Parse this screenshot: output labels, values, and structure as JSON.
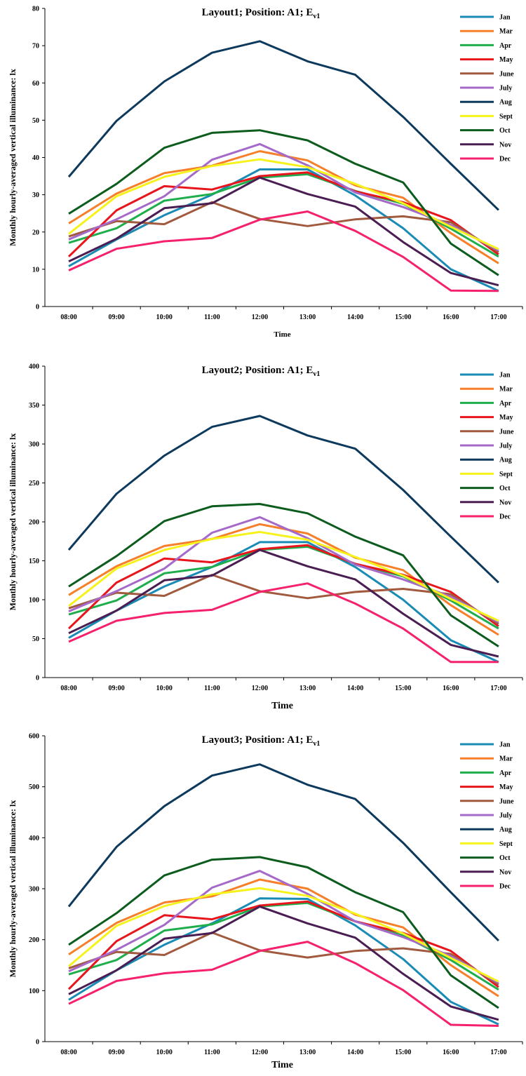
{
  "colors": {
    "Jan": "#1a8bb5",
    "Mar": "#f77f2a",
    "Apr": "#1fae4c",
    "May": "#e8161c",
    "June": "#a15a3e",
    "July": "#a569c9",
    "Aug": "#0d3a5c",
    "Sept": "#f6f21c",
    "Oct": "#0c5c1e",
    "Nov": "#4a1e52",
    "Dec": "#f5216d"
  },
  "chart_data": [
    {
      "type": "line",
      "title": "Layout1; Position: A1; E",
      "title_subscript": "v1",
      "xlabel": "Time",
      "ylabel": "Monthly hourly-averaged vertical illuminance: lx",
      "categories": [
        "08:00",
        "09:00",
        "10:00",
        "11:00",
        "12:00",
        "13:00",
        "14:00",
        "15:00",
        "16:00",
        "17:00"
      ],
      "ylim": [
        0,
        80
      ],
      "yticks": [
        0,
        10,
        20,
        30,
        40,
        50,
        60,
        70,
        80
      ],
      "legend_position": "right",
      "grid": false,
      "series": [
        {
          "name": "Jan",
          "values": [
            10.8,
            18.0,
            24.5,
            30.0,
            36.8,
            36.8,
            29.8,
            21.0,
            10.0,
            4.2
          ]
        },
        {
          "name": "Mar",
          "values": [
            22.3,
            30.3,
            35.8,
            37.8,
            41.7,
            39.2,
            32.5,
            29.2,
            19.7,
            11.6
          ]
        },
        {
          "name": "Apr",
          "values": [
            17.1,
            21.0,
            28.4,
            30.2,
            34.6,
            35.5,
            31.0,
            27.6,
            20.9,
            13.4
          ]
        },
        {
          "name": "May",
          "values": [
            13.4,
            25.8,
            32.3,
            31.4,
            35.0,
            36.0,
            30.9,
            28.0,
            23.2,
            14.0
          ]
        },
        {
          "name": "June",
          "values": [
            18.8,
            22.9,
            22.1,
            28.0,
            23.5,
            21.6,
            23.4,
            24.2,
            22.6,
            14.6
          ]
        },
        {
          "name": "July",
          "values": [
            18.0,
            23.4,
            29.6,
            39.4,
            43.6,
            37.9,
            30.6,
            26.7,
            21.9,
            15.0
          ]
        },
        {
          "name": "Aug",
          "values": [
            34.8,
            49.8,
            60.4,
            68.1,
            71.2,
            65.8,
            62.2,
            50.9,
            38.3,
            25.9
          ]
        },
        {
          "name": "Sept",
          "values": [
            19.5,
            29.6,
            34.8,
            37.7,
            39.5,
            37.4,
            32.9,
            27.7,
            21.4,
            15.4
          ]
        },
        {
          "name": "Oct",
          "values": [
            24.9,
            32.9,
            42.6,
            46.6,
            47.3,
            44.6,
            38.3,
            33.3,
            16.9,
            8.4
          ]
        },
        {
          "name": "Nov",
          "values": [
            12.1,
            18.2,
            26.4,
            27.7,
            34.6,
            30.2,
            26.8,
            17.3,
            9.0,
            5.7
          ]
        },
        {
          "name": "Dec",
          "values": [
            9.7,
            15.5,
            17.5,
            18.4,
            23.3,
            25.5,
            20.3,
            13.3,
            4.3,
            4.2
          ]
        }
      ]
    },
    {
      "type": "line",
      "title": "Layout2; Position: A1; E",
      "title_subscript": "v1",
      "xlabel": "Time",
      "ylabel": "Monthly hourly-averaged vertical illuminance: lx",
      "categories": [
        "08:00",
        "09:00",
        "10:00",
        "11:00",
        "12:00",
        "13:00",
        "14:00",
        "15:00",
        "16:00",
        "17:00"
      ],
      "ylim": [
        0,
        400
      ],
      "yticks": [
        0,
        50,
        100,
        150,
        200,
        250,
        300,
        350,
        400
      ],
      "legend_position": "right",
      "grid": false,
      "series": [
        {
          "name": "Jan",
          "values": [
            51,
            86,
            117,
            142,
            174,
            174,
            142,
            100,
            48,
            20
          ]
        },
        {
          "name": "Mar",
          "values": [
            106,
            143,
            169,
            178,
            197,
            185,
            154,
            138,
            93,
            55
          ]
        },
        {
          "name": "Apr",
          "values": [
            81,
            99,
            134,
            142,
            164,
            168,
            146,
            130,
            99,
            63
          ]
        },
        {
          "name": "May",
          "values": [
            63,
            122,
            153,
            148,
            165,
            170,
            146,
            132,
            110,
            66
          ]
        },
        {
          "name": "June",
          "values": [
            89,
            109,
            105,
            132,
            111,
            102,
            110,
            114,
            107,
            69
          ]
        },
        {
          "name": "July",
          "values": [
            85,
            111,
            140,
            186,
            206,
            179,
            145,
            126,
            104,
            71
          ]
        },
        {
          "name": "Aug",
          "values": [
            164,
            236,
            285,
            322,
            336,
            311,
            294,
            241,
            181,
            122
          ]
        },
        {
          "name": "Sept",
          "values": [
            92,
            140,
            164,
            178,
            187,
            177,
            155,
            131,
            101,
            73
          ]
        },
        {
          "name": "Oct",
          "values": [
            117,
            156,
            201,
            220,
            223,
            211,
            181,
            157,
            80,
            40
          ]
        },
        {
          "name": "Nov",
          "values": [
            57,
            86,
            125,
            131,
            164,
            143,
            126,
            82,
            42,
            27
          ]
        },
        {
          "name": "Dec",
          "values": [
            46,
            73,
            83,
            87,
            110,
            121,
            95,
            63,
            20,
            20
          ]
        }
      ]
    },
    {
      "type": "line",
      "title": "Layout3; Position: A1; E",
      "title_subscript": "v1",
      "xlabel": "Time",
      "ylabel": "Monthly hourly-averaged vertical illuminance: lx",
      "categories": [
        "08:00",
        "09:00",
        "10:00",
        "11:00",
        "12:00",
        "13:00",
        "14:00",
        "15:00",
        "16:00",
        "17:00"
      ],
      "ylim": [
        0,
        600
      ],
      "yticks": [
        0,
        100,
        200,
        300,
        400,
        500,
        600
      ],
      "legend_position": "right",
      "grid": false,
      "series": [
        {
          "name": "Jan",
          "values": [
            82,
            140,
            190,
            232,
            281,
            280,
            228,
            162,
            78,
            34
          ]
        },
        {
          "name": "Mar",
          "values": [
            171,
            233,
            273,
            285,
            318,
            300,
            249,
            224,
            150,
            89
          ]
        },
        {
          "name": "Apr",
          "values": [
            132,
            160,
            218,
            230,
            265,
            272,
            236,
            208,
            160,
            102
          ]
        },
        {
          "name": "May",
          "values": [
            103,
            197,
            248,
            240,
            267,
            275,
            236,
            213,
            178,
            107
          ]
        },
        {
          "name": "June",
          "values": [
            144,
            176,
            170,
            214,
            179,
            165,
            178,
            183,
            172,
            112
          ]
        },
        {
          "name": "July",
          "values": [
            138,
            180,
            229,
            302,
            335,
            290,
            236,
            205,
            168,
            115
          ]
        },
        {
          "name": "Aug",
          "values": [
            265,
            382,
            462,
            522,
            544,
            504,
            476,
            390,
            293,
            198
          ]
        },
        {
          "name": "Sept",
          "values": [
            148,
            227,
            266,
            289,
            301,
            286,
            251,
            212,
            164,
            118
          ]
        },
        {
          "name": "Oct",
          "values": [
            190,
            252,
            326,
            357,
            362,
            342,
            293,
            254,
            130,
            66
          ]
        },
        {
          "name": "Nov",
          "values": [
            93,
            140,
            202,
            213,
            265,
            232,
            204,
            133,
            69,
            43
          ]
        },
        {
          "name": "Dec",
          "values": [
            74,
            119,
            134,
            141,
            178,
            196,
            154,
            101,
            33,
            31
          ]
        }
      ]
    }
  ]
}
